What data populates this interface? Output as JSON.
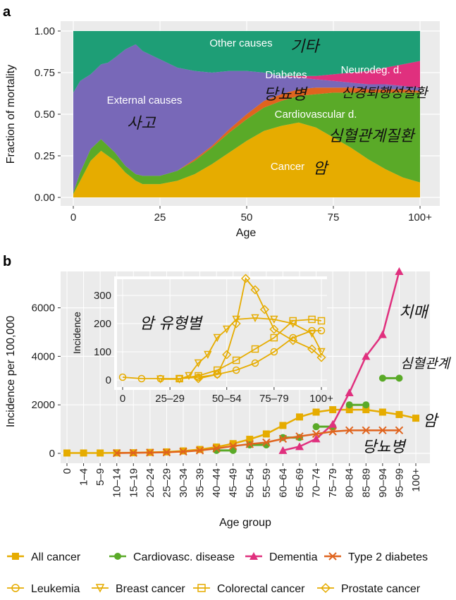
{
  "panel_a": {
    "letter": "a",
    "chart_data": {
      "type": "area",
      "stacked": true,
      "xlabel": "Age",
      "ylabel": "Fraction of mortality",
      "xlim": [
        0,
        100
      ],
      "ylim": [
        0,
        1
      ],
      "x_ticks": [
        "0",
        "25",
        "50",
        "75",
        "100+"
      ],
      "y_ticks": [
        "0.00",
        "0.25",
        "0.50",
        "0.75",
        "1.00"
      ],
      "x": [
        0,
        2,
        5,
        8,
        10,
        12,
        15,
        18,
        20,
        25,
        30,
        35,
        40,
        45,
        50,
        55,
        60,
        65,
        70,
        75,
        80,
        85,
        90,
        95,
        100
      ],
      "series": [
        {
          "name": "Cancer",
          "color": "#e6ac00",
          "values": [
            0.02,
            0.1,
            0.22,
            0.28,
            0.25,
            0.22,
            0.15,
            0.1,
            0.08,
            0.08,
            0.1,
            0.14,
            0.2,
            0.27,
            0.34,
            0.4,
            0.43,
            0.45,
            0.42,
            0.36,
            0.3,
            0.23,
            0.17,
            0.12,
            0.09
          ]
        },
        {
          "name": "Cardiovascular d.",
          "color": "#5aaa28",
          "values": [
            0.01,
            0.05,
            0.07,
            0.07,
            0.06,
            0.05,
            0.04,
            0.04,
            0.05,
            0.05,
            0.06,
            0.08,
            0.1,
            0.12,
            0.13,
            0.14,
            0.15,
            0.16,
            0.2,
            0.27,
            0.33,
            0.4,
            0.46,
            0.51,
            0.54
          ]
        },
        {
          "name": "Diabetes",
          "color": "#e0641e",
          "values": [
            0.0,
            0.0,
            0.0,
            0.0,
            0.0,
            0.0,
            0.0,
            0.0,
            0.0,
            0.0,
            0.0,
            0.01,
            0.01,
            0.02,
            0.03,
            0.04,
            0.04,
            0.04,
            0.04,
            0.03,
            0.03,
            0.02,
            0.02,
            0.02,
            0.01
          ]
        },
        {
          "name": "External causes",
          "color": "#7868b8",
          "values": [
            0.6,
            0.55,
            0.45,
            0.45,
            0.5,
            0.57,
            0.7,
            0.78,
            0.75,
            0.7,
            0.62,
            0.53,
            0.44,
            0.35,
            0.26,
            0.17,
            0.11,
            0.07,
            0.05,
            0.04,
            0.03,
            0.03,
            0.03,
            0.02,
            0.02
          ]
        },
        {
          "name": "Neurodeg. d.",
          "color": "#e0307e",
          "values": [
            0.0,
            0.0,
            0.0,
            0.0,
            0.0,
            0.0,
            0.0,
            0.0,
            0.0,
            0.0,
            0.0,
            0.0,
            0.0,
            0.0,
            0.0,
            0.0,
            0.0,
            0.01,
            0.02,
            0.04,
            0.06,
            0.08,
            0.1,
            0.13,
            0.16
          ]
        },
        {
          "name": "Other causes",
          "color": "#1e9e76",
          "values": [
            0.37,
            0.3,
            0.26,
            0.2,
            0.19,
            0.16,
            0.11,
            0.08,
            0.12,
            0.17,
            0.22,
            0.24,
            0.25,
            0.24,
            0.24,
            0.25,
            0.27,
            0.27,
            0.27,
            0.26,
            0.25,
            0.24,
            0.22,
            0.2,
            0.18
          ]
        }
      ]
    },
    "labels": {
      "other": "Other causes",
      "external": "External causes",
      "diabetes": "Diabetes",
      "neuro": "Neurodeg. d.",
      "cardio": "Cardiovascular d.",
      "cancer": "Cancer"
    },
    "annotations": {
      "other": "기타",
      "external": "사고",
      "diabetes": "당뇨병",
      "neuro": "신경퇴행성질환",
      "cardio": "심혈관계질환",
      "cancer": "암"
    }
  },
  "panel_b": {
    "letter": "b",
    "chart_data": {
      "type": "line",
      "xlabel": "Age group",
      "ylabel": "Incidence per 100,000",
      "ylim": [
        0,
        7500
      ],
      "y_ticks": [
        "0",
        "2000",
        "4000",
        "6000"
      ],
      "categories": [
        "0",
        "1–4",
        "5–9",
        "10–14",
        "15–19",
        "20–24",
        "25–29",
        "30–34",
        "35–39",
        "40–44",
        "45–49",
        "50–54",
        "55–59",
        "60–64",
        "65–69",
        "70–74",
        "75–79",
        "80–84",
        "85–89",
        "90–94",
        "95–99",
        "100+"
      ],
      "series": [
        {
          "name": "All cancer",
          "color": "#e6ac00",
          "marker": "square",
          "values": [
            15,
            15,
            15,
            20,
            25,
            40,
            60,
            100,
            160,
            260,
            400,
            580,
            800,
            1150,
            1500,
            1700,
            1800,
            1800,
            1800,
            1700,
            1600,
            1450
          ]
        },
        {
          "name": "Cardiovasc. disease",
          "color": "#5aaa28",
          "marker": "circle",
          "segments": [
            [
              9,
              10,
              120
            ],
            [
              11,
              12,
              350
            ],
            [
              13,
              14,
              650
            ],
            [
              15,
              16,
              1100
            ],
            [
              17,
              18,
              2000
            ],
            [
              19,
              20,
              3100
            ]
          ]
        },
        {
          "name": "Dementia",
          "color": "#e0307e",
          "marker": "triangle",
          "points": [
            [
              13,
              120
            ],
            [
              14,
              280
            ],
            [
              15,
              600
            ],
            [
              16,
              1200
            ],
            [
              17,
              2500
            ],
            [
              18,
              4000
            ],
            [
              19,
              4900
            ],
            [
              20,
              7500
            ]
          ]
        },
        {
          "name": "Type 2 diabetes",
          "color": "#e0641e",
          "marker": "x",
          "points": [
            [
              3,
              10
            ],
            [
              4,
              20
            ],
            [
              5,
              30
            ],
            [
              6,
              40
            ],
            [
              7,
              70
            ],
            [
              8,
              120
            ],
            [
              9,
              200
            ],
            [
              10,
              300
            ],
            [
              11,
              380
            ],
            [
              12,
              450
            ],
            [
              13,
              600
            ],
            [
              14,
              700
            ],
            [
              15,
              800
            ],
            [
              16,
              900
            ],
            [
              17,
              950
            ],
            [
              18,
              950
            ],
            [
              19,
              950
            ],
            [
              20,
              950
            ]
          ]
        }
      ],
      "inset": {
        "ylabel": "Incidence",
        "ylim": [
          0,
          350
        ],
        "y_ticks": [
          "0",
          "100",
          "200",
          "300"
        ],
        "x_ticks": [
          "0",
          "25–29",
          "50–54",
          "75–79",
          "100+"
        ],
        "series": [
          {
            "name": "Leukemia",
            "color": "#e6ac00",
            "marker": "circle-open",
            "points": [
              [
                0,
                10
              ],
              [
                2,
                5
              ],
              [
                4,
                5
              ],
              [
                6,
                5
              ],
              [
                8,
                10
              ],
              [
                10,
                20
              ],
              [
                12,
                35
              ],
              [
                14,
                60
              ],
              [
                16,
                100
              ],
              [
                18,
                150
              ],
              [
                20,
                175
              ],
              [
                21,
                175
              ]
            ]
          },
          {
            "name": "Breast cancer",
            "color": "#e6ac00",
            "marker": "triangle-open",
            "points": [
              [
                4,
                3
              ],
              [
                6,
                3
              ],
              [
                7,
                15
              ],
              [
                8,
                60
              ],
              [
                9,
                90
              ],
              [
                10,
                150
              ],
              [
                11,
                180
              ],
              [
                12,
                215
              ],
              [
                14,
                220
              ],
              [
                16,
                215
              ],
              [
                18,
                200
              ],
              [
                20,
                165
              ],
              [
                21,
                100
              ]
            ]
          },
          {
            "name": "Colorectal cancer",
            "color": "#e6ac00",
            "marker": "square-open",
            "points": [
              [
                6,
                5
              ],
              [
                8,
                15
              ],
              [
                10,
                35
              ],
              [
                12,
                70
              ],
              [
                14,
                110
              ],
              [
                16,
                150
              ],
              [
                18,
                210
              ],
              [
                20,
                215
              ],
              [
                21,
                210
              ]
            ]
          },
          {
            "name": "Prostate cancer",
            "color": "#e6ac00",
            "marker": "diamond-open",
            "points": [
              [
                8,
                5
              ],
              [
                10,
                20
              ],
              [
                11,
                90
              ],
              [
                12,
                200
              ],
              [
                13,
                360
              ],
              [
                14,
                320
              ],
              [
                15,
                250
              ],
              [
                16,
                180
              ],
              [
                18,
                140
              ],
              [
                20,
                110
              ],
              [
                21,
                80
              ]
            ]
          }
        ],
        "annotation": "암 유형별"
      }
    },
    "annotations": {
      "dementia": "치매",
      "cardio": "심혈관계 질환",
      "cancer": "암",
      "diabetes": "당뇨병"
    }
  },
  "legend": {
    "row1": [
      {
        "label": "All cancer",
        "color": "#e6ac00",
        "marker": "square"
      },
      {
        "label": "Cardiovasc. disease",
        "color": "#5aaa28",
        "marker": "circle"
      },
      {
        "label": "Dementia",
        "color": "#e0307e",
        "marker": "triangle"
      },
      {
        "label": "Type 2 diabetes",
        "color": "#e0641e",
        "marker": "x"
      }
    ],
    "row2": [
      {
        "label": "Leukemia",
        "color": "#e6ac00",
        "marker": "circle-open"
      },
      {
        "label": "Breast cancer",
        "color": "#e6ac00",
        "marker": "triangle-open"
      },
      {
        "label": "Colorectal cancer",
        "color": "#e6ac00",
        "marker": "square-open"
      },
      {
        "label": "Prostate cancer",
        "color": "#e6ac00",
        "marker": "diamond-open"
      }
    ]
  }
}
